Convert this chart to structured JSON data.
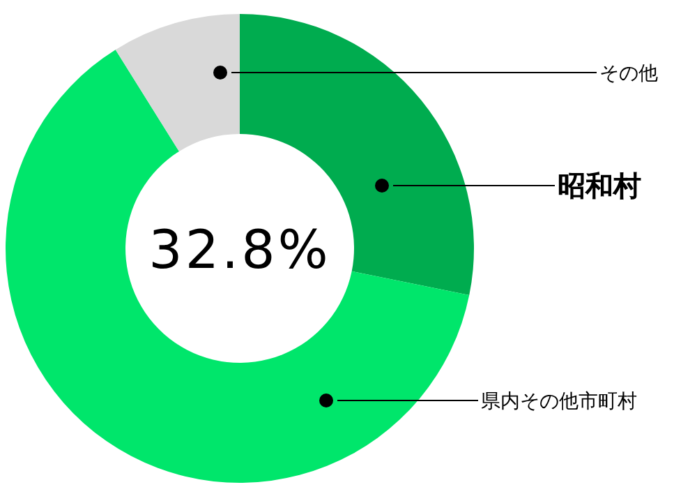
{
  "chart_data": {
    "type": "donut",
    "categories": [
      "昭和村",
      "県内その他市町村",
      "その他"
    ],
    "values": [
      28.2,
      62.9,
      8.9
    ],
    "colors": [
      "#00ac4f",
      "#00e66b",
      "#d9d9d9"
    ],
    "annotations": [
      "32.8%"
    ]
  }
}
